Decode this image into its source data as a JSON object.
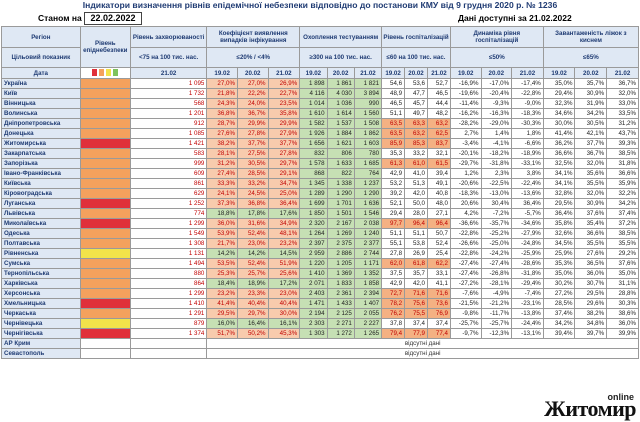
{
  "title": "Індикатори визначення рівнів епідемічної небезпеки відповідно до постанови КМУ від 9 грудня 2020 р. № 1236",
  "status_label": "Станом на",
  "status_date": "22.02.2022",
  "data_available": "Дані доступні за 21.02.2022",
  "headers": {
    "region": "Регіон",
    "indicator": "Цільовий показник",
    "date": "Дата",
    "level": "Рівень епіднебезпеки",
    "incidence": "Рівень захворюваності",
    "incidence_target": "<75 на 100 тис. нас.",
    "positivity": "Коефіцієнт виявлення випадків інфікування",
    "positivity_target": "≤20% / <4%",
    "testing": "Охоплення тестуванням",
    "testing_target": "≥300 на 100 тис. нас.",
    "hosp": "Рівень госпіталізацій",
    "hosp_target": "≤60 на 100 тис. нас.",
    "hosp_dyn": "Динаміка рівня госпіталізацій",
    "hosp_dyn_target": "≤50%",
    "oxygen": "Завантаженість ліжок з киснем",
    "oxygen_target": "≤65%",
    "d21": "21.02",
    "d19": "19.02",
    "d20": "20.02"
  },
  "legend_colors": [
    "#e0303a",
    "#f4a15d",
    "#f2e34a",
    "#7fc35d"
  ],
  "rows": [
    {
      "name": "Україна",
      "lvl": "org",
      "inc": "1 095",
      "pos": [
        "27,0%",
        "27,0%",
        "26,9%"
      ],
      "test": [
        "1 898",
        "1 861",
        "1 821"
      ],
      "hosp": [
        "54,6",
        "53,6",
        "52,7"
      ],
      "dyn": [
        "-16,9%",
        "-17,0%",
        "-17,4%"
      ],
      "oxy": [
        "35,0%",
        "35,7%",
        "36,7%"
      ]
    },
    {
      "name": "Київ",
      "lvl": "org",
      "inc": "1 732",
      "pos": [
        "21,8%",
        "22,2%",
        "22,7%"
      ],
      "test": [
        "4 116",
        "4 030",
        "3 894"
      ],
      "hosp": [
        "48,9",
        "47,7",
        "46,5"
      ],
      "dyn": [
        "-19,6%",
        "-20,4%",
        "-22,8%"
      ],
      "oxy": [
        "29,4%",
        "30,9%",
        "32,0%"
      ]
    },
    {
      "name": "Вінницька",
      "lvl": "org",
      "inc": "568",
      "pos": [
        "24,3%",
        "24,0%",
        "23,5%"
      ],
      "test": [
        "1 014",
        "1 036",
        "990"
      ],
      "hosp": [
        "46,5",
        "45,7",
        "44,4"
      ],
      "dyn": [
        "-11,4%",
        "-9,3%",
        "-9,0%"
      ],
      "oxy": [
        "32,3%",
        "31,9%",
        "33,0%"
      ]
    },
    {
      "name": "Волинська",
      "lvl": "org",
      "inc": "1 201",
      "pos": [
        "36,8%",
        "36,7%",
        "35,8%"
      ],
      "test": [
        "1 610",
        "1 614",
        "1 560"
      ],
      "hosp": [
        "51,1",
        "49,7",
        "48,2"
      ],
      "dyn": [
        "-16,2%",
        "-16,3%",
        "-18,3%"
      ],
      "oxy": [
        "34,6%",
        "34,2%",
        "33,5%"
      ]
    },
    {
      "name": "Дніпропетровська",
      "lvl": "org",
      "inc": "912",
      "pos": [
        "28,7%",
        "29,9%",
        "29,9%"
      ],
      "test": [
        "1 582",
        "1 537",
        "1 508"
      ],
      "hosp": [
        "63,5",
        "63,3",
        "63,2"
      ],
      "dyn": [
        "-28,2%",
        "-29,0%",
        "-30,3%"
      ],
      "oxy": [
        "30,0%",
        "30,5%",
        "31,2%"
      ]
    },
    {
      "name": "Донецька",
      "lvl": "org",
      "inc": "1 085",
      "pos": [
        "27,6%",
        "27,8%",
        "27,9%"
      ],
      "test": [
        "1 926",
        "1 884",
        "1 862"
      ],
      "hosp": [
        "63,5",
        "63,2",
        "62,5"
      ],
      "dyn": [
        "2,7%",
        "1,4%",
        "1,8%"
      ],
      "oxy": [
        "41,4%",
        "42,1%",
        "43,7%"
      ]
    },
    {
      "name": "Житомирська",
      "lvl": "red",
      "inc": "1 421",
      "pos": [
        "38,2%",
        "37,7%",
        "37,7%"
      ],
      "test": [
        "1 656",
        "1 621",
        "1 603"
      ],
      "hosp": [
        "85,9",
        "85,3",
        "83,7"
      ],
      "dyn": [
        "-3,4%",
        "-4,1%",
        "-6,6%"
      ],
      "oxy": [
        "36,2%",
        "37,7%",
        "39,3%"
      ]
    },
    {
      "name": "Закарпатська",
      "lvl": "org",
      "inc": "583",
      "pos": [
        "28,1%",
        "27,5%",
        "27,8%"
      ],
      "test": [
        "832",
        "806",
        "780"
      ],
      "hosp": [
        "35,3",
        "33,2",
        "32,1"
      ],
      "dyn": [
        "-20,1%",
        "-18,2%",
        "-18,9%"
      ],
      "oxy": [
        "36,6%",
        "36,7%",
        "38,5%"
      ]
    },
    {
      "name": "Запорізька",
      "lvl": "org",
      "inc": "999",
      "pos": [
        "31,2%",
        "30,5%",
        "29,7%"
      ],
      "test": [
        "1 578",
        "1 633",
        "1 685"
      ],
      "hosp": [
        "61,3",
        "61,0",
        "61,5"
      ],
      "dyn": [
        "-29,7%",
        "-31,8%",
        "-33,1%"
      ],
      "oxy": [
        "32,5%",
        "32,0%",
        "31,8%"
      ]
    },
    {
      "name": "Івано-Франківська",
      "lvl": "org",
      "inc": "609",
      "pos": [
        "27,4%",
        "28,5%",
        "29,1%"
      ],
      "test": [
        "868",
        "822",
        "764"
      ],
      "hosp": [
        "42,9",
        "41,0",
        "39,4"
      ],
      "dyn": [
        "1,2%",
        "2,3%",
        "3,8%"
      ],
      "oxy": [
        "34,1%",
        "35,6%",
        "36,6%"
      ]
    },
    {
      "name": "Київська",
      "lvl": "org",
      "inc": "861",
      "pos": [
        "33,3%",
        "33,2%",
        "34,7%"
      ],
      "test": [
        "1 345",
        "1 338",
        "1 237"
      ],
      "hosp": [
        "53,2",
        "51,3",
        "49,1"
      ],
      "dyn": [
        "-20,6%",
        "-22,5%",
        "-22,4%"
      ],
      "oxy": [
        "34,1%",
        "35,5%",
        "35,9%"
      ]
    },
    {
      "name": "Кіровоградська",
      "lvl": "org",
      "inc": "629",
      "pos": [
        "24,1%",
        "24,5%",
        "25,0%"
      ],
      "test": [
        "1 289",
        "1 290",
        "1 290"
      ],
      "hosp": [
        "39,2",
        "42,0",
        "40,8"
      ],
      "dyn": [
        "-18,3%",
        "-13,0%",
        "-13,6%"
      ],
      "oxy": [
        "32,8%",
        "32,0%",
        "32,2%"
      ]
    },
    {
      "name": "Луганська",
      "lvl": "red",
      "inc": "1 252",
      "pos": [
        "37,3%",
        "36,8%",
        "36,4%"
      ],
      "test": [
        "1 699",
        "1 701",
        "1 636"
      ],
      "hosp": [
        "52,1",
        "50,0",
        "48,0"
      ],
      "dyn": [
        "20,6%",
        "30,4%",
        "36,4%"
      ],
      "oxy": [
        "29,5%",
        "30,9%",
        "34,2%"
      ]
    },
    {
      "name": "Львівська",
      "lvl": "org",
      "inc": "774",
      "pos": [
        "18,8%",
        "17,8%",
        "17,6%"
      ],
      "test": [
        "1 850",
        "1 501",
        "1 546"
      ],
      "hosp": [
        "29,4",
        "28,0",
        "27,1"
      ],
      "dyn": [
        "4,2%",
        "-7,2%",
        "-5,7%"
      ],
      "oxy": [
        "36,4%",
        "37,6%",
        "37,4%"
      ]
    },
    {
      "name": "Миколаївська",
      "lvl": "red",
      "inc": "1 299",
      "pos": [
        "36,0%",
        "31,6%",
        "34,9%"
      ],
      "test": [
        "2 320",
        "2 167",
        "2 038"
      ],
      "hosp": [
        "97,7",
        "96,4",
        "96,4"
      ],
      "dyn": [
        "-36,6%",
        "-35,7%",
        "-34,6%"
      ],
      "oxy": [
        "35,8%",
        "35,4%",
        "37,2%"
      ]
    },
    {
      "name": "Одеська",
      "lvl": "org",
      "inc": "1 549",
      "pos": [
        "53,9%",
        "52,4%",
        "48,1%"
      ],
      "test": [
        "1 264",
        "1 269",
        "1 240"
      ],
      "hosp": [
        "51,1",
        "51,1",
        "50,7"
      ],
      "dyn": [
        "-22,8%",
        "-25,2%",
        "-27,9%"
      ],
      "oxy": [
        "32,6%",
        "36,6%",
        "38,5%"
      ]
    },
    {
      "name": "Полтавська",
      "lvl": "org",
      "inc": "1 308",
      "pos": [
        "21,7%",
        "23,0%",
        "23,2%"
      ],
      "test": [
        "2 397",
        "2 375",
        "2 377"
      ],
      "hosp": [
        "55,1",
        "53,8",
        "52,4"
      ],
      "dyn": [
        "-26,6%",
        "-25,0%",
        "-24,8%"
      ],
      "oxy": [
        "34,5%",
        "35,5%",
        "35,5%"
      ]
    },
    {
      "name": "Рівненська",
      "lvl": "yel",
      "inc": "1 131",
      "pos": [
        "14,2%",
        "14,2%",
        "14,5%"
      ],
      "test": [
        "2 959",
        "2 886",
        "2 744"
      ],
      "hosp": [
        "27,8",
        "26,9",
        "25,4"
      ],
      "dyn": [
        "-22,8%",
        "-24,2%",
        "-25,9%"
      ],
      "oxy": [
        "25,9%",
        "27,6%",
        "29,2%"
      ]
    },
    {
      "name": "Сумська",
      "lvl": "org",
      "inc": "1 494",
      "pos": [
        "53,5%",
        "52,4%",
        "51,9%"
      ],
      "test": [
        "1 220",
        "1 205",
        "1 171"
      ],
      "hosp": [
        "62,0",
        "61,8",
        "62,2"
      ],
      "dyn": [
        "-27,4%",
        "-27,4%",
        "-28,6%"
      ],
      "oxy": [
        "35,3%",
        "36,5%",
        "37,6%"
      ]
    },
    {
      "name": "Тернопільська",
      "lvl": "org",
      "inc": "880",
      "pos": [
        "25,3%",
        "25,7%",
        "25,6%"
      ],
      "test": [
        "1 410",
        "1 369",
        "1 352"
      ],
      "hosp": [
        "37,5",
        "35,7",
        "33,1"
      ],
      "dyn": [
        "-27,4%",
        "-26,8%",
        "-31,8%"
      ],
      "oxy": [
        "35,0%",
        "36,0%",
        "35,0%"
      ]
    },
    {
      "name": "Харківська",
      "lvl": "org",
      "inc": "864",
      "pos": [
        "18,4%",
        "18,9%",
        "17,2%"
      ],
      "test": [
        "2 071",
        "1 833",
        "1 858"
      ],
      "hosp": [
        "42,9",
        "42,0",
        "41,1"
      ],
      "dyn": [
        "-27,2%",
        "-28,1%",
        "-29,4%"
      ],
      "oxy": [
        "30,2%",
        "30,7%",
        "31,1%"
      ]
    },
    {
      "name": "Херсонська",
      "lvl": "org",
      "inc": "1 299",
      "pos": [
        "23,2%",
        "23,3%",
        "23,0%"
      ],
      "test": [
        "2 403",
        "2 361",
        "2 394"
      ],
      "hosp": [
        "72,7",
        "71,6",
        "71,6"
      ],
      "dyn": [
        "-7,6%",
        "-4,9%",
        "-7,4%"
      ],
      "oxy": [
        "27,2%",
        "29,5%",
        "28,8%"
      ]
    },
    {
      "name": "Хмельницька",
      "lvl": "red",
      "inc": "1 410",
      "pos": [
        "41,4%",
        "40,4%",
        "40,4%"
      ],
      "test": [
        "1 471",
        "1 433",
        "1 407"
      ],
      "hosp": [
        "78,2",
        "75,6",
        "73,6"
      ],
      "dyn": [
        "-21,5%",
        "-21,2%",
        "-23,1%"
      ],
      "oxy": [
        "28,5%",
        "29,6%",
        "30,3%"
      ]
    },
    {
      "name": "Черкаська",
      "lvl": "org",
      "inc": "1 291",
      "pos": [
        "29,5%",
        "29,7%",
        "30,0%"
      ],
      "test": [
        "2 194",
        "2 125",
        "2 055"
      ],
      "hosp": [
        "76,2",
        "75,5",
        "76,9"
      ],
      "dyn": [
        "-9,8%",
        "-11,7%",
        "-13,8%"
      ],
      "oxy": [
        "37,4%",
        "38,2%",
        "38,6%"
      ]
    },
    {
      "name": "Чернівецька",
      "lvl": "yel",
      "inc": "879",
      "pos": [
        "16,0%",
        "16,4%",
        "16,1%"
      ],
      "test": [
        "2 303",
        "2 271",
        "2 227"
      ],
      "hosp": [
        "37,8",
        "37,4",
        "37,4"
      ],
      "dyn": [
        "-25,7%",
        "-25,7%",
        "-24,4%"
      ],
      "oxy": [
        "34,2%",
        "34,8%",
        "36,0%"
      ]
    },
    {
      "name": "Чернігівська",
      "lvl": "red",
      "inc": "1 374",
      "pos": [
        "51,7%",
        "50,2%",
        "45,3%"
      ],
      "test": [
        "1 303",
        "1 272",
        "1 265"
      ],
      "hosp": [
        "79,4",
        "77,9",
        "77,4"
      ],
      "dyn": [
        "-9,7%",
        "-12,3%",
        "-13,1%"
      ],
      "oxy": [
        "39,4%",
        "39,7%",
        "39,9%"
      ]
    }
  ],
  "no_data_rows": [
    {
      "name": "АР Крим",
      "text": "відсутні дані"
    },
    {
      "name": "Севастополь",
      "text": "відсутні дані"
    }
  ],
  "logo": {
    "online": "online",
    "name": "Житомир"
  }
}
